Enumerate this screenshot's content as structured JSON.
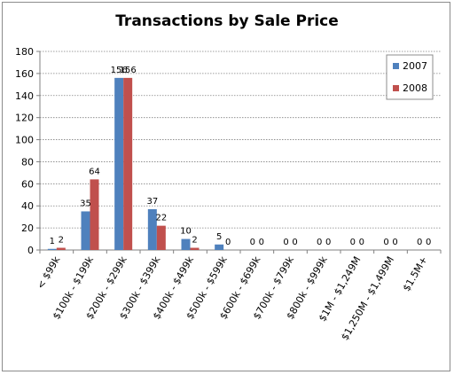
{
  "chart_data": {
    "type": "bar",
    "title": "Transactions by Sale Price",
    "xlabel": "",
    "ylabel": "",
    "ylim": [
      0,
      180
    ],
    "yticks": [
      0,
      20,
      40,
      60,
      80,
      100,
      120,
      140,
      160,
      180
    ],
    "grid": true,
    "legend_position": "right",
    "categories": [
      "< $99k",
      "$100k - $199k",
      "$200k - $299k",
      "$300k - $399k",
      "$400k - $499k",
      "$500k - $599k",
      "$600k - $699k",
      "$700k - $799k",
      "$800k - $999k",
      "$1M - $1,249M",
      "$1,250M - $1,499M",
      "$1.5M+"
    ],
    "series": [
      {
        "name": "2007",
        "color": "#4f81bd",
        "values": [
          1,
          35,
          156,
          37,
          10,
          5,
          0,
          0,
          0,
          0,
          0,
          0
        ]
      },
      {
        "name": "2008",
        "color": "#c0504d",
        "values": [
          2,
          64,
          156,
          22,
          2,
          0,
          0,
          0,
          0,
          0,
          0,
          0
        ]
      }
    ]
  }
}
